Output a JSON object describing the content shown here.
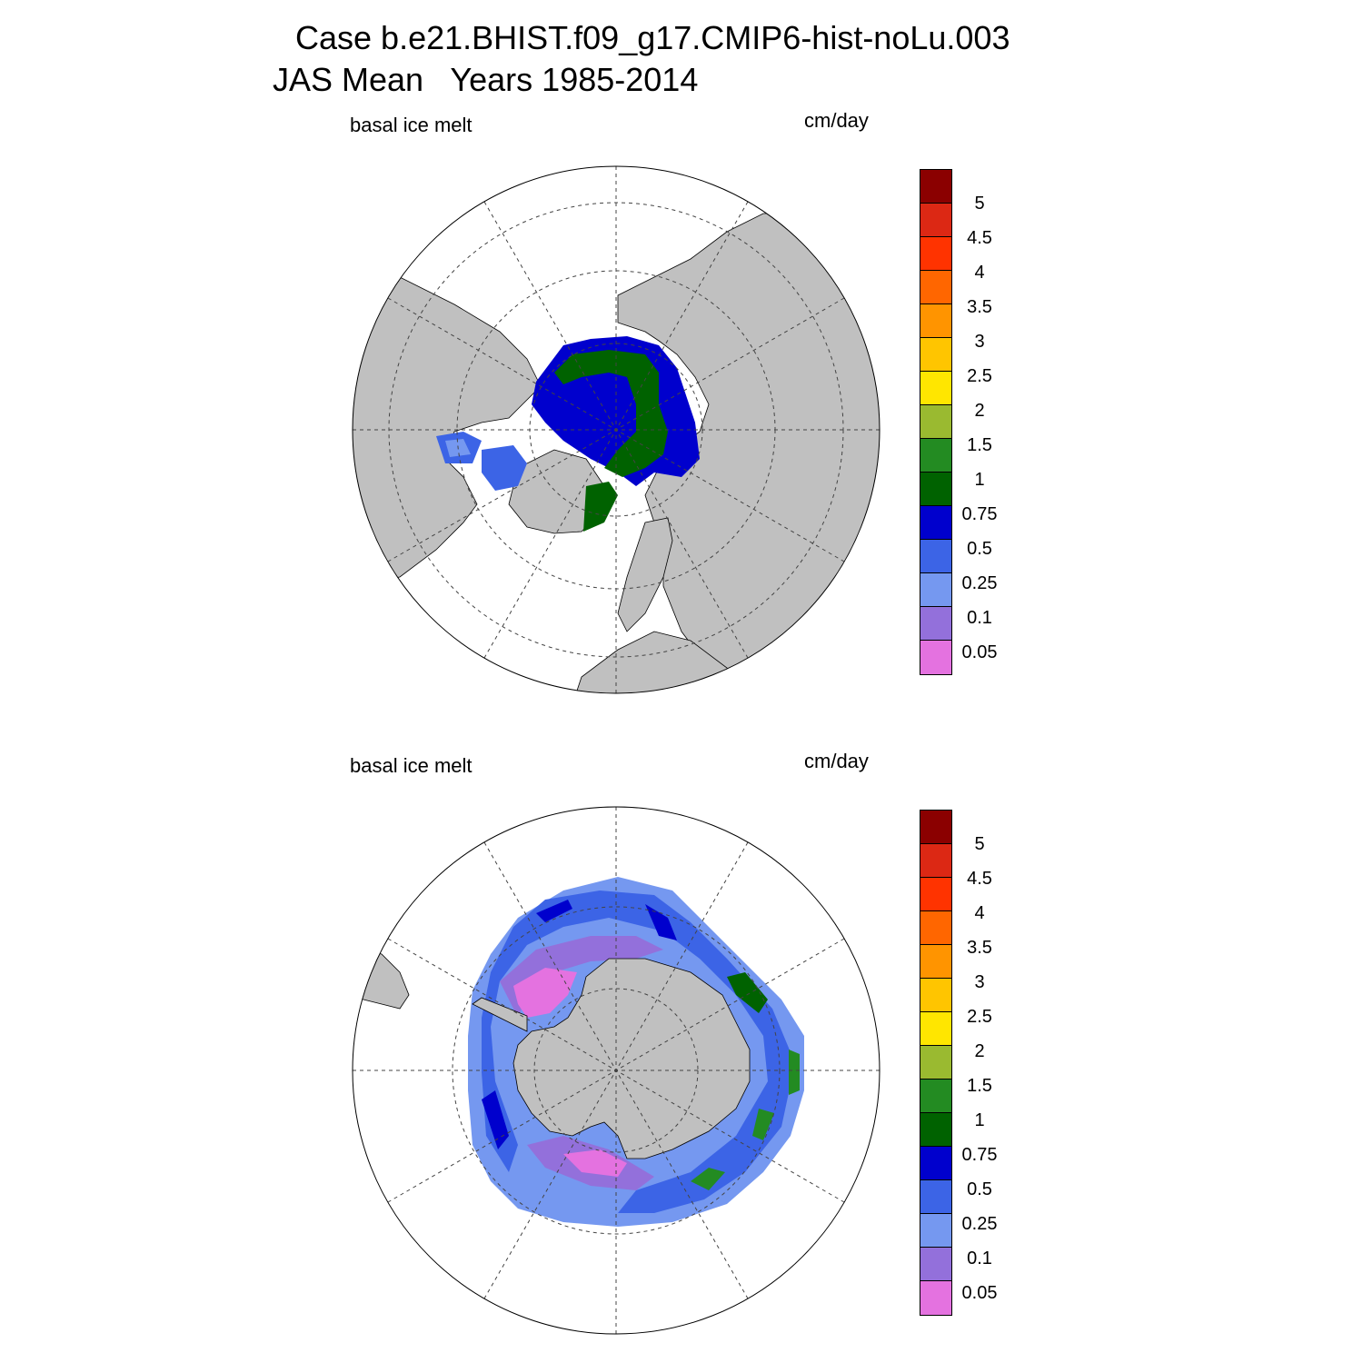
{
  "header": {
    "line1": "Case b.e21.BHIST.f09_g17.CMIP6-hist-noLu.003",
    "line2": "JAS Mean   Years 1985-2014"
  },
  "panels": [
    {
      "id": "north",
      "variable": "basal ice melt",
      "units": "cm/day"
    },
    {
      "id": "south",
      "variable": "basal ice melt",
      "units": "cm/day"
    }
  ],
  "colorbar": {
    "levels": [
      "5",
      "4.5",
      "4",
      "3.5",
      "3",
      "2.5",
      "2",
      "1.5",
      "1",
      "0.75",
      "0.5",
      "0.25",
      "0.1",
      "0.05"
    ],
    "colors": [
      "#8b0000",
      "#dc2814",
      "#ff3300",
      "#ff6600",
      "#ff9400",
      "#ffc500",
      "#ffe600",
      "#9aba30",
      "#238b22",
      "#006200",
      "#0000cd",
      "#3c64e6",
      "#7598f0",
      "#9370db",
      "#e472e0"
    ]
  },
  "map_colors": {
    "land": "#c0c0c0",
    "ocean": "#ffffff"
  }
}
